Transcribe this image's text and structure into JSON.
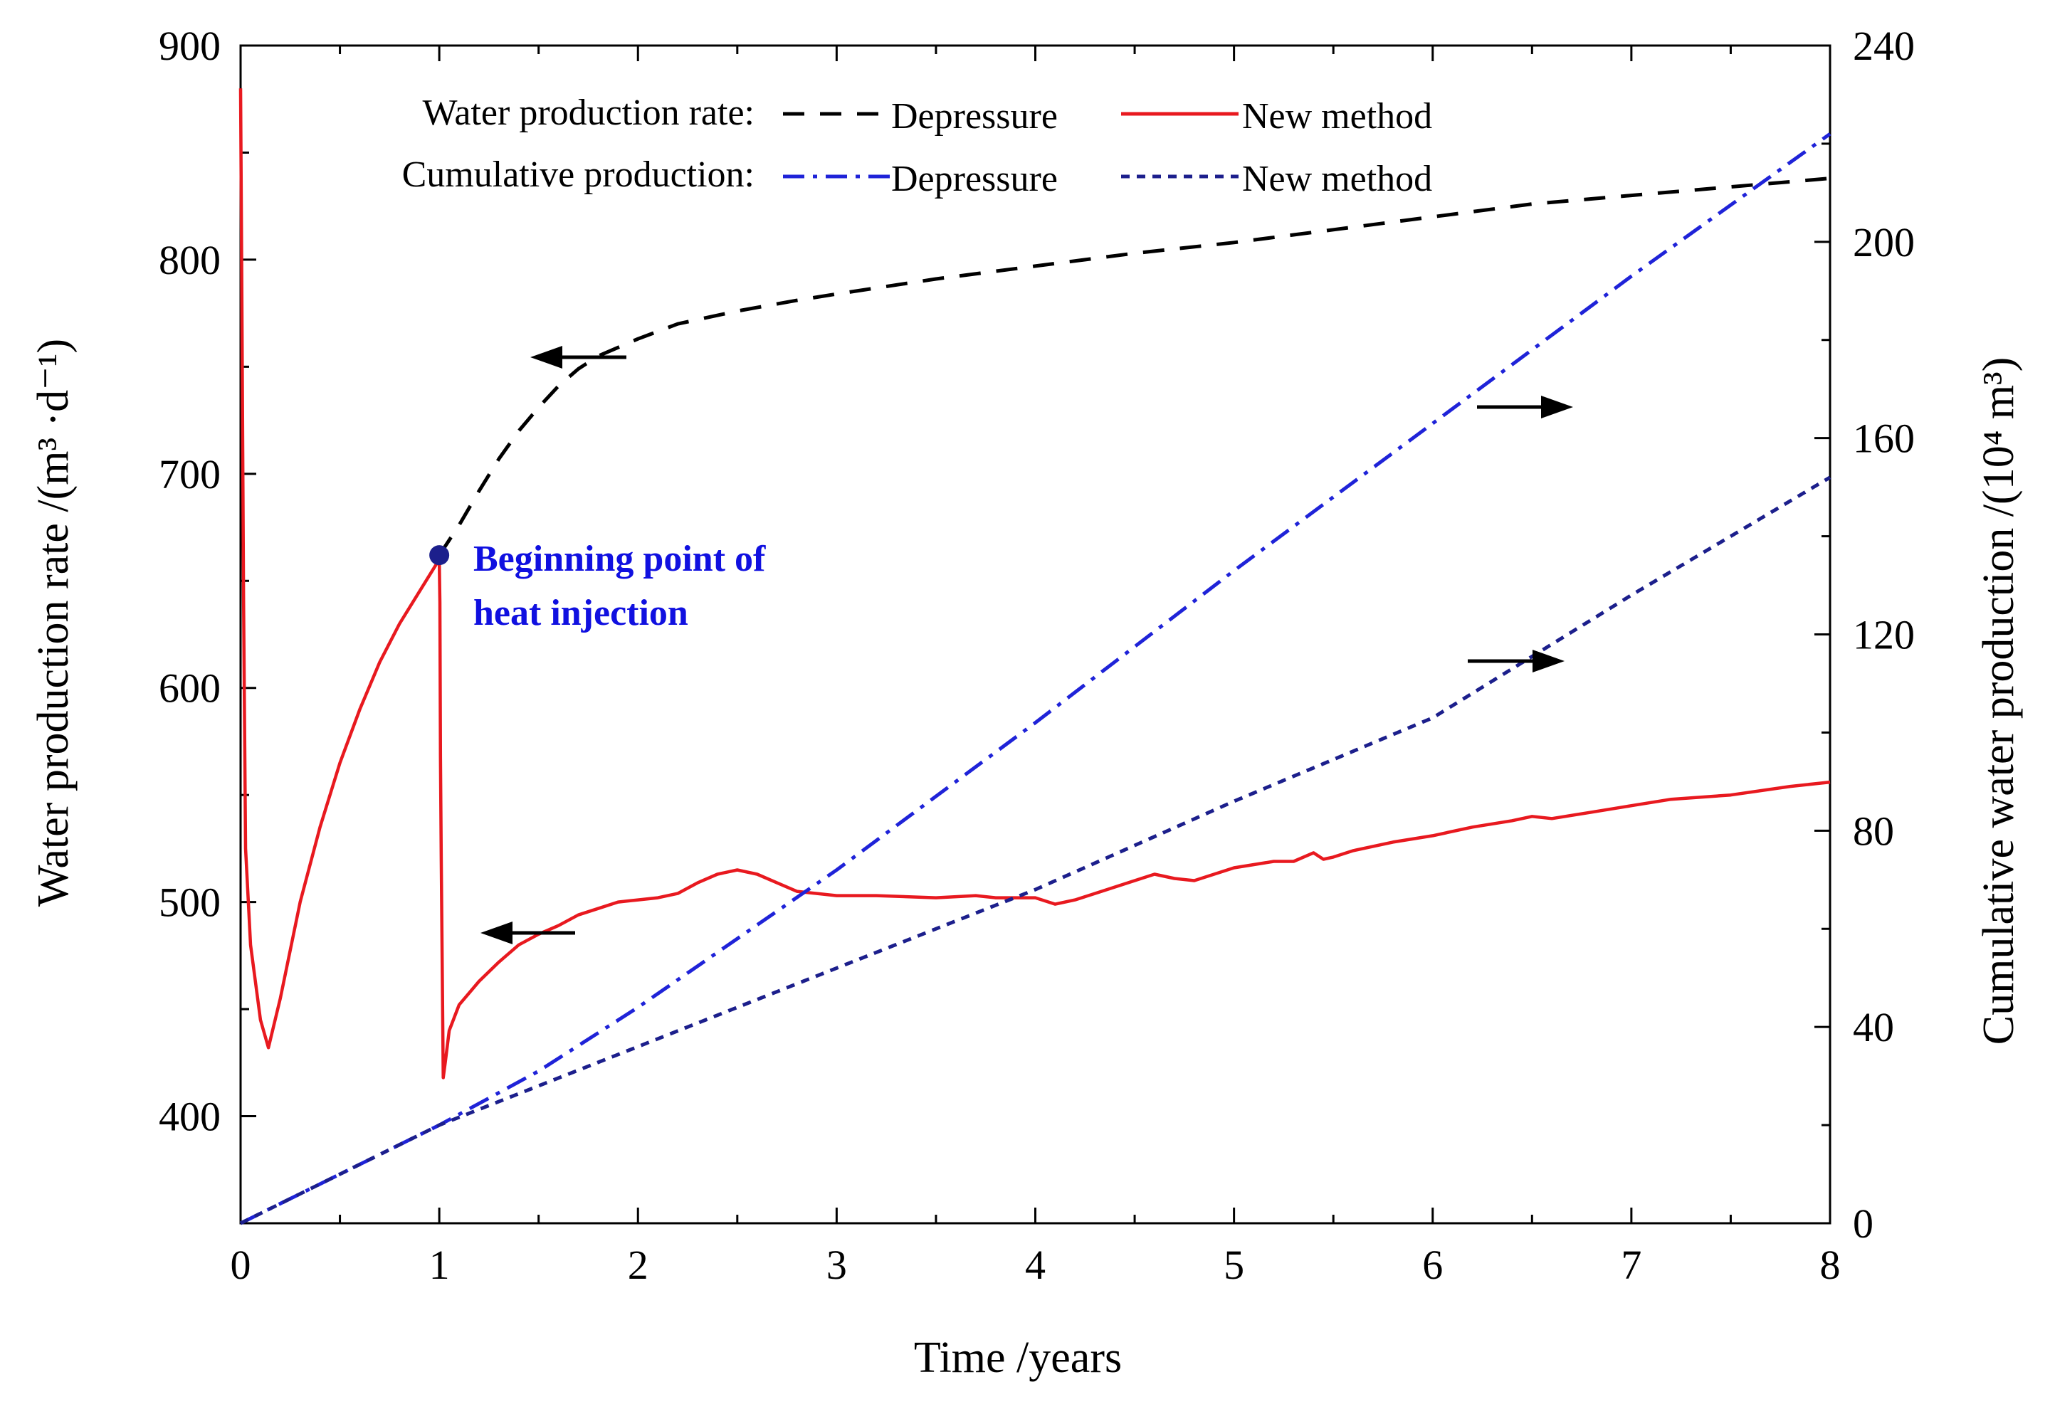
{
  "chart_data": {
    "type": "line",
    "title": "",
    "xlabel": "Time /years",
    "ylabel_left": "Water production rate /(m³ ·d⁻¹)",
    "ylabel_right": "Cumulative water production /(10⁴ m³)",
    "xlim": [
      0,
      8
    ],
    "ylim_left": [
      350,
      900
    ],
    "ylim_right": [
      0,
      240
    ],
    "x_ticks": [
      "0",
      "1",
      "2",
      "3",
      "4",
      "5",
      "6",
      "7",
      "8"
    ],
    "y_left_ticks": [
      "400",
      "500",
      "600",
      "700",
      "800",
      "900"
    ],
    "y_right_ticks": [
      "0",
      "40",
      "80",
      "120",
      "160",
      "200",
      "240"
    ],
    "grid": false,
    "legend": {
      "row1_label": "Water production rate:",
      "row2_label": "Cumulative production:",
      "entries": [
        "Depressure",
        "New method",
        "Depressure",
        "New method"
      ]
    },
    "annotation": {
      "line1": "Beginning point of",
      "line2": "heat injection",
      "x": 1.0,
      "y": 662
    },
    "colors": {
      "rate_depressure": "#000000",
      "rate_new_method": "#e8191f",
      "cum_depressure": "#1f23d8",
      "cum_new_method": "#1c1f8c",
      "annotation": "#1010e0"
    },
    "series": [
      {
        "name": "Water production rate: Depressure",
        "axis": "left",
        "x": [
          1.0,
          1.1,
          1.2,
          1.3,
          1.4,
          1.5,
          1.6,
          1.7,
          1.8,
          2.0,
          2.2,
          2.5,
          2.8,
          3.0,
          3.5,
          4.0,
          4.5,
          5.0,
          5.5,
          6.0,
          6.5,
          7.0,
          7.5,
          8.0
        ],
        "y": [
          662,
          676,
          692,
          707,
          720,
          731,
          741,
          749,
          755,
          763,
          770,
          776,
          781,
          784,
          791,
          797,
          803,
          808,
          814,
          820,
          826,
          830,
          834,
          838
        ]
      },
      {
        "name": "Water production rate: New method",
        "axis": "left",
        "x": [
          0.0,
          0.008,
          0.015,
          0.025,
          0.05,
          0.1,
          0.14,
          0.2,
          0.3,
          0.4,
          0.5,
          0.6,
          0.7,
          0.8,
          0.9,
          1.0,
          1.003,
          1.006,
          1.01,
          1.02,
          1.03,
          1.05,
          1.1,
          1.2,
          1.3,
          1.4,
          1.5,
          1.6,
          1.7,
          1.8,
          1.9,
          2.0,
          2.1,
          2.2,
          2.3,
          2.4,
          2.5,
          2.6,
          2.7,
          2.8,
          3.0,
          3.2,
          3.5,
          3.7,
          3.8,
          4.0,
          4.1,
          4.2,
          4.3,
          4.5,
          4.6,
          4.7,
          4.8,
          5.0,
          5.2,
          5.3,
          5.4,
          5.45,
          5.5,
          5.6,
          5.8,
          6.0,
          6.2,
          6.4,
          6.5,
          6.6,
          6.8,
          7.0,
          7.2,
          7.5,
          7.8,
          8.0
        ],
        "y": [
          880,
          760,
          640,
          525,
          480,
          445,
          432,
          455,
          500,
          535,
          565,
          590,
          612,
          630,
          645,
          660,
          640,
          568,
          520,
          418,
          425,
          440,
          452,
          463,
          472,
          480,
          485,
          489,
          494,
          497,
          500,
          501,
          502,
          504,
          509,
          513,
          515,
          513,
          509,
          505,
          503,
          503,
          502,
          503,
          502,
          502,
          499,
          501,
          504,
          510,
          513,
          511,
          510,
          516,
          519,
          519,
          523,
          520,
          521,
          524,
          528,
          531,
          535,
          538,
          540,
          539,
          542,
          545,
          548,
          550,
          554,
          556
        ]
      },
      {
        "name": "Cumulative production: Depressure",
        "axis": "right",
        "x": [
          0,
          0.5,
          1.0,
          1.5,
          2.0,
          3.0,
          4.0,
          5.0,
          6.0,
          7.0,
          8.0
        ],
        "y": [
          0,
          10,
          20,
          31,
          44,
          72,
          102,
          133,
          163,
          193,
          222
        ]
      },
      {
        "name": "Cumulative production: New method",
        "axis": "right",
        "x": [
          0,
          0.5,
          1.0,
          1.5,
          2.0,
          3.0,
          4.0,
          5.0,
          6.0,
          7.0,
          8.0
        ],
        "y": [
          0,
          10,
          20,
          28,
          36,
          52,
          68,
          86,
          103,
          128,
          152
        ]
      }
    ]
  }
}
